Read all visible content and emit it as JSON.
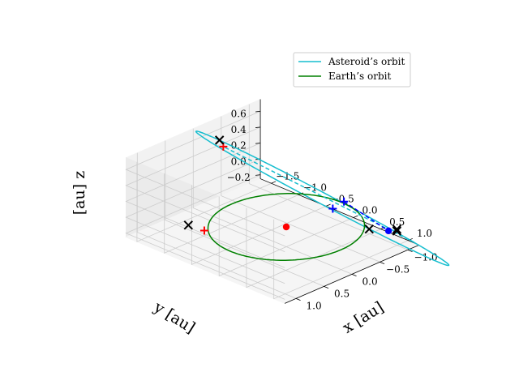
{
  "chart_data": {
    "type": "line",
    "projection": "3d",
    "title": "",
    "legend": {
      "placement": "top-right",
      "entries": [
        {
          "name": "Asteroid’s orbit",
          "color": "#17becf"
        },
        {
          "name": "Earth’s orbit",
          "color": "#008000"
        }
      ]
    },
    "axes": {
      "x": {
        "label": "x [au]",
        "range": [
          -1.7,
          1.2
        ],
        "ticks": [
          -1.5,
          -1.0,
          -0.5,
          0.0,
          0.5,
          1.0
        ],
        "tick_labels": [
          "−1.5",
          "−1.0",
          "−0.5",
          "0.0",
          "0.5",
          "1.0"
        ]
      },
      "y": {
        "label": "y [au]",
        "range": [
          -1.2,
          1.2
        ],
        "ticks": [
          -1.0,
          -0.5,
          0.0,
          0.5,
          1.0
        ],
        "tick_labels": [
          "−1.0",
          "−0.5",
          "0.0",
          "0.5",
          "1.0"
        ]
      },
      "z": {
        "label": "[au] z",
        "range": [
          -0.25,
          0.75
        ],
        "ticks": [
          -0.2,
          0.0,
          0.2,
          0.4,
          0.6
        ],
        "tick_labels": [
          "−0.2",
          "0.0",
          "0.2",
          "0.4",
          "0.6"
        ]
      }
    },
    "grid": true,
    "series": [
      {
        "name": "Asteroid’s orbit",
        "color": "#17becf",
        "orbit": {
          "center": [
            0.2,
            -0.45,
            0.28
          ],
          "u": [
            -1.9,
            0.4,
            0.42
          ],
          "v": [
            0.025,
            0.12,
            0.0
          ]
        }
      },
      {
        "name": "Earth’s orbit",
        "color": "#008000",
        "orbit": {
          "center": [
            0.0,
            0.0,
            0.0
          ],
          "u": [
            1.0,
            0.0,
            0.0
          ],
          "v": [
            0.0,
            1.0,
            0.0
          ]
        }
      }
    ],
    "dashed_segments": [
      {
        "color": "#17becf",
        "from": [
          1.54,
          -0.78,
          0.01
        ],
        "to": [
          -1.15,
          0.0,
          0.68
        ]
      },
      {
        "color": "#0000ff",
        "from": [
          0.42,
          -0.62,
          0.25
        ],
        "to": [
          1.02,
          -0.83,
          -0.01
        ]
      }
    ],
    "markers": [
      {
        "kind": "dot",
        "color": "#ff0000",
        "position": [
          0.0,
          0.0,
          0.0
        ]
      },
      {
        "kind": "dot",
        "color": "#0000ff",
        "position": [
          1.02,
          -0.83,
          -0.01
        ]
      },
      {
        "kind": "plus",
        "color": "#0000ff",
        "position": [
          0.42,
          -0.62,
          0.25
        ]
      },
      {
        "kind": "plus",
        "color": "#0000ff",
        "position": [
          0.4,
          -0.44,
          0.21
        ]
      },
      {
        "kind": "plus",
        "color": "#ff0000",
        "position": [
          -1.15,
          0.0,
          0.68
        ]
      },
      {
        "kind": "plus",
        "color": "#ff0000",
        "position": [
          -0.72,
          0.76,
          -0.02
        ]
      },
      {
        "kind": "x",
        "color": "#000000",
        "position": [
          -1.24,
          -0.02,
          0.73
        ]
      },
      {
        "kind": "x",
        "color": "#000000",
        "position": [
          -0.95,
          0.82,
          0.0
        ]
      },
      {
        "kind": "x",
        "color": "#000000",
        "position": [
          0.82,
          -0.68,
          0.0
        ]
      },
      {
        "kind": "x",
        "color": "#000000",
        "position": [
          1.08,
          -0.92,
          0.0
        ]
      },
      {
        "kind": "x",
        "color": "#000000",
        "position": [
          1.1,
          -0.9,
          -0.01
        ]
      }
    ]
  }
}
